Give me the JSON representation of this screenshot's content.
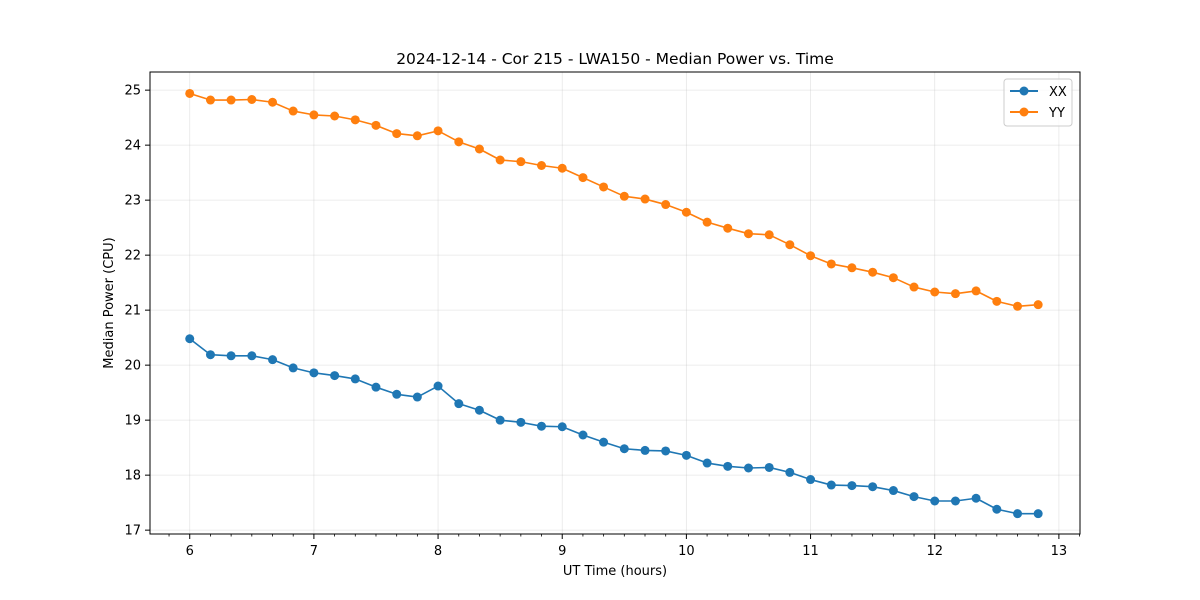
{
  "chart_data": {
    "type": "line",
    "title": "2024-12-14 - Cor 215 - LWA150 - Median Power vs. Time",
    "xlabel": "UT Time (hours)",
    "ylabel": "Median Power (CPU)",
    "xlim": [
      5.68,
      13.17
    ],
    "ylim": [
      16.93,
      25.33
    ],
    "grid": true,
    "legend_position": "top-right",
    "x_ticks": [
      6,
      7,
      8,
      9,
      10,
      11,
      12,
      13
    ],
    "x_tick_labels": [
      "6",
      "7",
      "8",
      "9",
      "10",
      "11",
      "12",
      "13"
    ],
    "y_ticks": [
      17,
      18,
      19,
      20,
      21,
      22,
      23,
      24,
      25
    ],
    "y_tick_labels": [
      "17",
      "18",
      "19",
      "20",
      "21",
      "22",
      "23",
      "24",
      "25"
    ],
    "x": [
      6.0,
      6.167,
      6.333,
      6.5,
      6.667,
      6.833,
      7.0,
      7.167,
      7.333,
      7.5,
      7.667,
      7.833,
      8.0,
      8.167,
      8.333,
      8.5,
      8.667,
      8.833,
      9.0,
      9.167,
      9.333,
      9.5,
      9.667,
      9.833,
      10.0,
      10.167,
      10.333,
      10.5,
      10.667,
      10.833,
      11.0,
      11.167,
      11.333,
      11.5,
      11.667,
      11.833,
      12.0,
      12.167,
      12.333,
      12.5,
      12.667,
      12.833
    ],
    "series": [
      {
        "name": "XX",
        "color": "#1f77b4",
        "values": [
          20.48,
          20.19,
          20.17,
          20.17,
          20.1,
          19.95,
          19.86,
          19.81,
          19.75,
          19.6,
          19.47,
          19.42,
          19.62,
          19.3,
          19.18,
          19.0,
          18.96,
          18.89,
          18.88,
          18.73,
          18.6,
          18.48,
          18.45,
          18.44,
          18.36,
          18.22,
          18.16,
          18.13,
          18.14,
          18.05,
          17.92,
          17.82,
          17.81,
          17.79,
          17.72,
          17.61,
          17.53,
          17.53,
          17.58,
          17.38,
          17.3,
          17.3
        ]
      },
      {
        "name": "YY",
        "color": "#ff7f0e",
        "values": [
          24.94,
          24.82,
          24.82,
          24.83,
          24.78,
          24.62,
          24.55,
          24.53,
          24.46,
          24.36,
          24.21,
          24.17,
          24.26,
          24.06,
          23.93,
          23.73,
          23.7,
          23.63,
          23.58,
          23.41,
          23.24,
          23.07,
          23.02,
          22.92,
          22.78,
          22.6,
          22.49,
          22.39,
          22.37,
          22.19,
          21.99,
          21.84,
          21.77,
          21.69,
          21.59,
          21.42,
          21.33,
          21.3,
          21.35,
          21.16,
          21.07,
          21.1
        ]
      }
    ]
  }
}
